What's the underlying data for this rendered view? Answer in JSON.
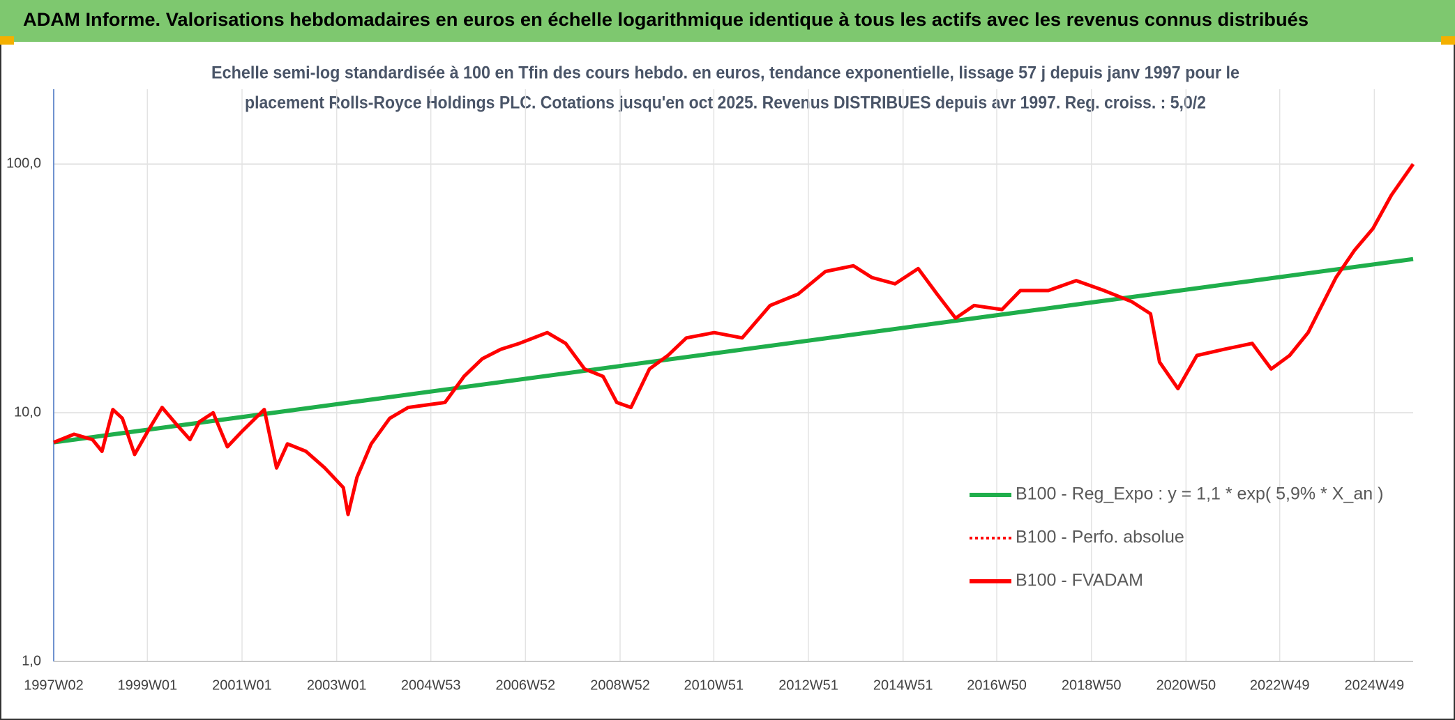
{
  "chart_data": {
    "type": "line",
    "title": "ADAM Informe. Valorisations hebdomadaires en euros en échelle logarithmique identique à tous les actifs avec les revenus connus distribués",
    "subtitle": [
      "Echelle semi-log standardisée à 100 en Tfin des cours hebdo. en euros, tendance exponentielle, lissage 57 j depuis janv 1997 pour le",
      "placement Rolls-Royce Holdings PLC. Cotations jusqu'en oct 2025. Revenus DISTRIBUES depuis avr 1997. Reg. croiss. : 5,0/2"
    ],
    "log_scale": true,
    "grid": true,
    "legend": "lower right",
    "xlim": [
      1997.02,
      2025.75
    ],
    "ylim": [
      1,
      200
    ],
    "yticks": [
      {
        "value": 1,
        "label": "1,0"
      },
      {
        "value": 10,
        "label": "10,0"
      },
      {
        "value": 100,
        "label": "100,0"
      }
    ],
    "xticks": [
      {
        "value": 1997.02,
        "label": "1997W02"
      },
      {
        "value": 1999.0,
        "label": "1999W01"
      },
      {
        "value": 2001.0,
        "label": "2001W01"
      },
      {
        "value": 2003.0,
        "label": "2003W01"
      },
      {
        "value": 2004.99,
        "label": "2004W53"
      },
      {
        "value": 2006.99,
        "label": "2006W52"
      },
      {
        "value": 2008.99,
        "label": "2008W52"
      },
      {
        "value": 2010.97,
        "label": "2010W51"
      },
      {
        "value": 2012.97,
        "label": "2012W51"
      },
      {
        "value": 2014.97,
        "label": "2014W51"
      },
      {
        "value": 2016.95,
        "label": "2016W50"
      },
      {
        "value": 2018.95,
        "label": "2018W50"
      },
      {
        "value": 2020.95,
        "label": "2020W50"
      },
      {
        "value": 2022.93,
        "label": "2022W49"
      },
      {
        "value": 2024.93,
        "label": "2024W49"
      }
    ],
    "series": [
      {
        "name": "B100 - Reg_Expo : y = 1,1 * exp( 5,9% *  X_an )",
        "color": "#1fae4b",
        "style": "solid",
        "x": [
          1997.02,
          2025.75
        ],
        "values": [
          7.6,
          41.5
        ]
      },
      {
        "name": "B100 - Perfo. absolue",
        "color": "#ff0000",
        "style": "dotted",
        "x": [
          1997.02,
          1997.45,
          1997.84,
          1998.04,
          1998.27,
          1998.47,
          1998.73,
          1999.02,
          1999.31,
          1999.61,
          1999.9,
          2000.1,
          2000.39,
          2000.69,
          2001.02,
          2001.47,
          2001.73,
          2001.96,
          2002.35,
          2002.75,
          2003.14,
          2003.24,
          2003.43,
          2003.73,
          2004.12,
          2004.51,
          2005.29,
          2005.69,
          2006.08,
          2006.47,
          2006.86,
          2007.45,
          2007.84,
          2008.24,
          2008.63,
          2008.92,
          2009.22,
          2009.61,
          2010.0,
          2010.39,
          2010.98,
          2011.57,
          2012.16,
          2012.75,
          2013.33,
          2013.92,
          2014.31,
          2014.8,
          2015.29,
          2015.69,
          2016.08,
          2016.47,
          2017.06,
          2017.45,
          2018.04,
          2018.63,
          2019.22,
          2019.8,
          2020.2,
          2020.39,
          2020.78,
          2021.18,
          2021.76,
          2022.35,
          2022.75,
          2023.14,
          2023.53,
          2023.73,
          2024.12,
          2024.51,
          2024.9,
          2025.29,
          2025.75
        ],
        "values": [
          7.6,
          8.2,
          7.8,
          7.0,
          10.3,
          9.5,
          6.8,
          8.5,
          10.5,
          9.0,
          7.8,
          9.2,
          10.0,
          7.3,
          8.5,
          10.3,
          6.0,
          7.5,
          7.0,
          6.0,
          5.0,
          3.9,
          5.5,
          7.5,
          9.5,
          10.5,
          11.0,
          14,
          16.5,
          18,
          19,
          21,
          19,
          15,
          14,
          11,
          10.5,
          15,
          17,
          20,
          21,
          20,
          27,
          30,
          37,
          39,
          35,
          33,
          38,
          30,
          24,
          27,
          26,
          31,
          31,
          34,
          31,
          28,
          25,
          16,
          12.5,
          17,
          18,
          19,
          15,
          17,
          21,
          25,
          35,
          45,
          55,
          75,
          100
        ]
      },
      {
        "name": "B100 - FVADAM",
        "color": "#ff0000",
        "style": "solid",
        "x": [
          1997.02,
          1997.45,
          1997.84,
          1998.04,
          1998.27,
          1998.47,
          1998.73,
          1999.02,
          1999.31,
          1999.61,
          1999.9,
          2000.1,
          2000.39,
          2000.69,
          2001.02,
          2001.47,
          2001.73,
          2001.96,
          2002.35,
          2002.75,
          2003.14,
          2003.24,
          2003.43,
          2003.73,
          2004.12,
          2004.51,
          2005.29,
          2005.69,
          2006.08,
          2006.47,
          2006.86,
          2007.45,
          2007.84,
          2008.24,
          2008.63,
          2008.92,
          2009.22,
          2009.61,
          2010.0,
          2010.39,
          2010.98,
          2011.57,
          2012.16,
          2012.75,
          2013.33,
          2013.92,
          2014.31,
          2014.8,
          2015.29,
          2015.69,
          2016.08,
          2016.47,
          2017.06,
          2017.45,
          2018.04,
          2018.63,
          2019.22,
          2019.8,
          2020.2,
          2020.39,
          2020.78,
          2021.18,
          2021.76,
          2022.35,
          2022.75,
          2023.14,
          2023.53,
          2023.73,
          2024.12,
          2024.51,
          2024.9,
          2025.29,
          2025.75
        ],
        "values": [
          7.6,
          8.2,
          7.8,
          7.0,
          10.3,
          9.5,
          6.8,
          8.5,
          10.5,
          9.0,
          7.8,
          9.2,
          10.0,
          7.3,
          8.5,
          10.3,
          6.0,
          7.5,
          7.0,
          6.0,
          5.0,
          3.9,
          5.5,
          7.5,
          9.5,
          10.5,
          11.0,
          14,
          16.5,
          18,
          19,
          21,
          19,
          15,
          14,
          11,
          10.5,
          15,
          17,
          20,
          21,
          20,
          27,
          30,
          37,
          39,
          35,
          33,
          38,
          30,
          24,
          27,
          26,
          31,
          31,
          34,
          31,
          28,
          25,
          16,
          12.5,
          17,
          18,
          19,
          15,
          17,
          21,
          25,
          35,
          45,
          55,
          75,
          100
        ]
      }
    ]
  }
}
